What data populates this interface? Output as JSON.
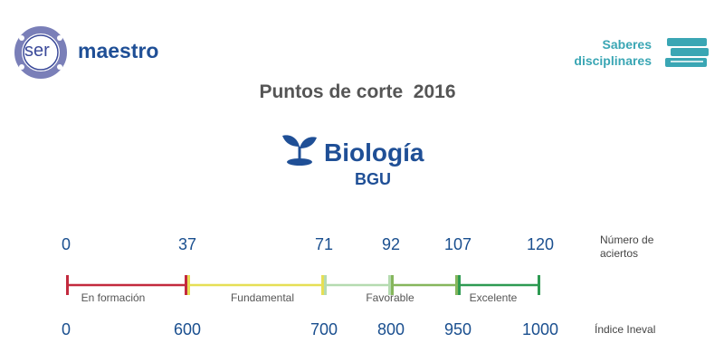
{
  "logo": {
    "ser": "ser",
    "brand": "maestro"
  },
  "badge": {
    "line1": "Saberes",
    "line2": "disciplinares"
  },
  "title": "Puntos de corte  2016",
  "subject": "Biología",
  "level": "BGU",
  "scale": {
    "aciertos_label": "Número de aciertos",
    "aciertos": [
      0,
      37,
      71,
      92,
      107,
      120
    ],
    "ineval_label": "Índice Ineval",
    "ineval": [
      0,
      600,
      700,
      800,
      950,
      1000
    ],
    "segments": [
      {
        "name": "En formación",
        "color": "#c32a3e"
      },
      {
        "name": "Fundamental",
        "color": "#e6df55"
      },
      {
        "name": "Favorable",
        "color": "#b5dbb0"
      },
      {
        "name": "Favorable",
        "color": "#86b65c"
      },
      {
        "name": "Excelente",
        "color": "#2e9a52"
      }
    ]
  }
}
